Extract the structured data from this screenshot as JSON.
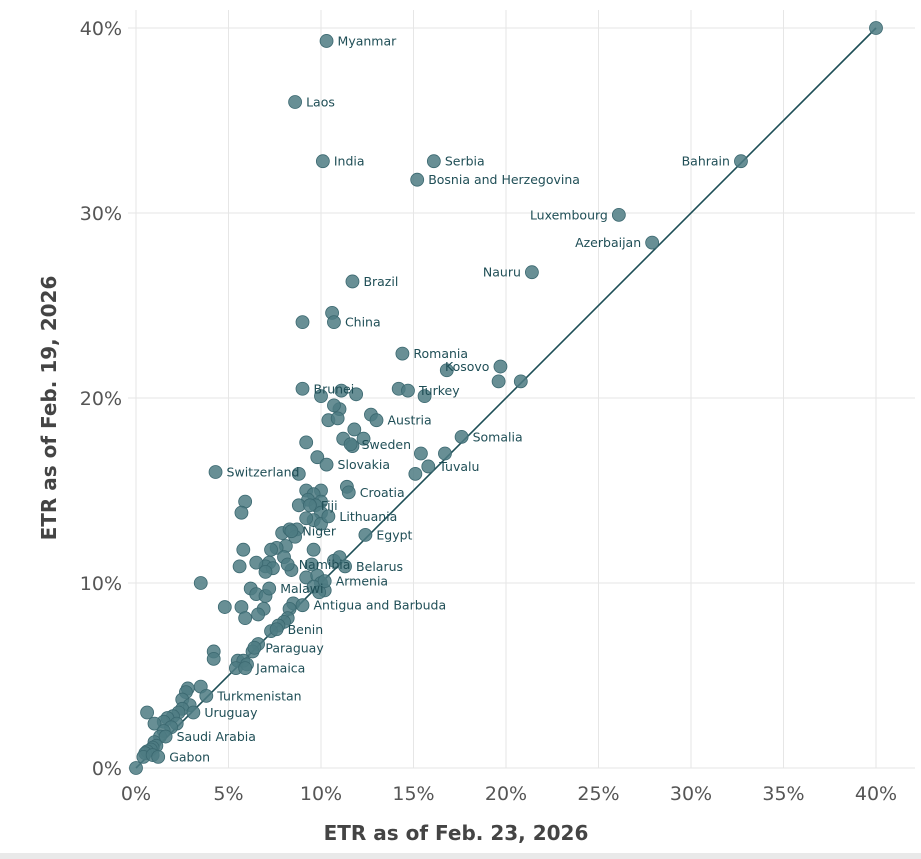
{
  "colors": {
    "point": "#4e7b83",
    "line": "#1d4e56",
    "label": "#1f4e56",
    "grid": "#e6e6e6"
  },
  "chart_data": {
    "type": "scatter",
    "title": "",
    "xlabel": "ETR as of Feb. 23, 2026",
    "ylabel": "ETR as of Feb. 19, 2026",
    "xlim": [
      0,
      40
    ],
    "ylim": [
      0,
      40
    ],
    "x_ticks": [
      "0%",
      "5%",
      "10%",
      "15%",
      "20%",
      "25%",
      "30%",
      "35%",
      "40%"
    ],
    "y_ticks": [
      "0%",
      "10%",
      "20%",
      "30%",
      "40%"
    ],
    "grid": true,
    "reference_line": {
      "from": [
        0,
        0
      ],
      "to": [
        40,
        40
      ]
    },
    "labeled_points": [
      {
        "label": "Myanmar",
        "x": 10.3,
        "y": 39.3
      },
      {
        "label": "Laos",
        "x": 8.6,
        "y": 36.0
      },
      {
        "label": "India",
        "x": 10.1,
        "y": 32.8
      },
      {
        "label": "Serbia",
        "x": 16.1,
        "y": 32.8
      },
      {
        "label": "Bosnia and Herzegovina",
        "x": 15.2,
        "y": 31.8
      },
      {
        "label": "Bahrain",
        "x": 32.7,
        "y": 32.8
      },
      {
        "label": "Luxembourg",
        "x": 26.1,
        "y": 29.9
      },
      {
        "label": "Azerbaijan",
        "x": 27.9,
        "y": 28.4
      },
      {
        "label": "Nauru",
        "x": 21.4,
        "y": 26.8
      },
      {
        "label": "Brazil",
        "x": 11.7,
        "y": 26.3
      },
      {
        "label": "China",
        "x": 10.7,
        "y": 24.1
      },
      {
        "label": "Romania",
        "x": 14.4,
        "y": 22.4
      },
      {
        "label": "Kosovo",
        "x": 19.7,
        "y": 21.7
      },
      {
        "label": "Brunei",
        "x": 9.0,
        "y": 20.5
      },
      {
        "label": "Turkey",
        "x": 14.7,
        "y": 20.4
      },
      {
        "label": "Austria",
        "x": 13.0,
        "y": 18.8
      },
      {
        "label": "Somalia",
        "x": 17.6,
        "y": 17.9
      },
      {
        "label": "Sweden",
        "x": 11.6,
        "y": 17.5
      },
      {
        "label": "Slovakia",
        "x": 10.3,
        "y": 16.4
      },
      {
        "label": "Tuvalu",
        "x": 15.8,
        "y": 16.3
      },
      {
        "label": "Switzerland",
        "x": 4.3,
        "y": 16.0
      },
      {
        "label": "Croatia",
        "x": 11.5,
        "y": 14.9
      },
      {
        "label": "Fiji",
        "x": 9.4,
        "y": 14.2
      },
      {
        "label": "Lithuania",
        "x": 10.4,
        "y": 13.6
      },
      {
        "label": "Niger",
        "x": 8.4,
        "y": 12.8
      },
      {
        "label": "Egypt",
        "x": 12.4,
        "y": 12.6
      },
      {
        "label": "Namibia",
        "x": 8.2,
        "y": 11.0
      },
      {
        "label": "Belarus",
        "x": 11.3,
        "y": 10.9
      },
      {
        "label": "Armenia",
        "x": 10.2,
        "y": 10.1
      },
      {
        "label": "Malawi",
        "x": 7.2,
        "y": 9.7
      },
      {
        "label": "Antigua and Barbuda",
        "x": 9.0,
        "y": 8.8
      },
      {
        "label": "Benin",
        "x": 7.6,
        "y": 7.5
      },
      {
        "label": "Paraguay",
        "x": 6.4,
        "y": 6.5
      },
      {
        "label": "Jamaica",
        "x": 5.9,
        "y": 5.4
      },
      {
        "label": "Turkmenistan",
        "x": 3.8,
        "y": 3.9
      },
      {
        "label": "Uruguay",
        "x": 3.1,
        "y": 3.0
      },
      {
        "label": "Saudi Arabia",
        "x": 1.6,
        "y": 1.7
      },
      {
        "label": "Gabon",
        "x": 1.2,
        "y": 0.6
      }
    ],
    "points": [
      [
        40.0,
        40.0
      ],
      [
        20.8,
        20.9
      ],
      [
        9.0,
        24.1
      ],
      [
        10.6,
        24.6
      ],
      [
        16.8,
        21.5
      ],
      [
        19.6,
        20.9
      ],
      [
        15.6,
        20.1
      ],
      [
        10.0,
        20.1
      ],
      [
        11.1,
        20.4
      ],
      [
        11.9,
        20.2
      ],
      [
        14.2,
        20.5
      ],
      [
        11.0,
        19.4
      ],
      [
        12.7,
        19.1
      ],
      [
        10.7,
        19.6
      ],
      [
        10.4,
        18.8
      ],
      [
        10.9,
        18.9
      ],
      [
        11.8,
        18.3
      ],
      [
        11.2,
        17.8
      ],
      [
        12.3,
        17.8
      ],
      [
        11.7,
        17.4
      ],
      [
        9.2,
        17.6
      ],
      [
        15.4,
        17.0
      ],
      [
        16.7,
        17.0
      ],
      [
        9.8,
        16.8
      ],
      [
        15.1,
        15.9
      ],
      [
        8.8,
        15.9
      ],
      [
        10.0,
        15.0
      ],
      [
        9.2,
        15.0
      ],
      [
        9.6,
        14.8
      ],
      [
        10.0,
        14.4
      ],
      [
        9.3,
        14.5
      ],
      [
        8.8,
        14.2
      ],
      [
        9.7,
        14.2
      ],
      [
        11.4,
        15.2
      ],
      [
        5.9,
        14.4
      ],
      [
        5.7,
        13.8
      ],
      [
        10.0,
        13.8
      ],
      [
        9.6,
        13.4
      ],
      [
        9.2,
        13.5
      ],
      [
        10.0,
        13.2
      ],
      [
        8.7,
        12.9
      ],
      [
        7.9,
        12.7
      ],
      [
        8.3,
        12.9
      ],
      [
        8.6,
        12.5
      ],
      [
        8.1,
        12.0
      ],
      [
        7.6,
        11.9
      ],
      [
        7.3,
        11.8
      ],
      [
        5.8,
        11.8
      ],
      [
        9.6,
        11.8
      ],
      [
        8.0,
        11.4
      ],
      [
        7.2,
        11.1
      ],
      [
        7.0,
        10.9
      ],
      [
        6.5,
        11.1
      ],
      [
        7.4,
        10.8
      ],
      [
        5.6,
        10.9
      ],
      [
        7.0,
        10.6
      ],
      [
        9.5,
        11.0
      ],
      [
        10.7,
        11.2
      ],
      [
        11.0,
        11.4
      ],
      [
        8.4,
        10.7
      ],
      [
        9.2,
        10.3
      ],
      [
        9.8,
        10.4
      ],
      [
        10.0,
        10.0
      ],
      [
        9.6,
        9.8
      ],
      [
        10.2,
        9.6
      ],
      [
        9.9,
        9.5
      ],
      [
        3.5,
        10.0
      ],
      [
        6.2,
        9.7
      ],
      [
        6.5,
        9.4
      ],
      [
        7.0,
        9.3
      ],
      [
        8.5,
        8.9
      ],
      [
        8.3,
        8.6
      ],
      [
        6.9,
        8.6
      ],
      [
        5.7,
        8.7
      ],
      [
        4.8,
        8.7
      ],
      [
        6.6,
        8.3
      ],
      [
        5.9,
        8.1
      ],
      [
        8.2,
        8.1
      ],
      [
        8.0,
        7.9
      ],
      [
        7.7,
        7.7
      ],
      [
        7.3,
        7.4
      ],
      [
        6.6,
        6.7
      ],
      [
        6.3,
        6.3
      ],
      [
        4.2,
        6.3
      ],
      [
        4.2,
        5.9
      ],
      [
        5.5,
        5.8
      ],
      [
        5.8,
        5.8
      ],
      [
        5.4,
        5.4
      ],
      [
        6.0,
        5.6
      ],
      [
        3.5,
        4.4
      ],
      [
        2.8,
        4.3
      ],
      [
        2.7,
        4.1
      ],
      [
        2.5,
        3.7
      ],
      [
        2.9,
        3.4
      ],
      [
        2.5,
        3.2
      ],
      [
        2.3,
        3.0
      ],
      [
        0.6,
        3.0
      ],
      [
        2.0,
        2.8
      ],
      [
        1.7,
        2.7
      ],
      [
        1.5,
        2.5
      ],
      [
        2.2,
        2.4
      ],
      [
        1.0,
        2.4
      ],
      [
        1.9,
        2.2
      ],
      [
        1.5,
        2.0
      ],
      [
        1.3,
        1.7
      ],
      [
        1.0,
        1.4
      ],
      [
        1.1,
        1.2
      ],
      [
        0.9,
        1.1
      ],
      [
        0.8,
        1.0
      ],
      [
        0.6,
        0.9
      ],
      [
        0.5,
        0.8
      ],
      [
        0.4,
        0.6
      ],
      [
        0.9,
        0.7
      ],
      [
        0.0,
        0.0
      ]
    ]
  }
}
